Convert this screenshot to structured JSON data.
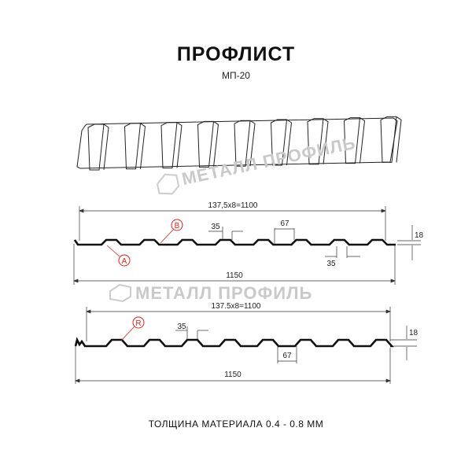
{
  "title": "ПРОФЛИСТ",
  "subtitle": "МП-20",
  "watermark": "МЕТАЛЛ ПРОФИЛЬ",
  "footer": "ТОЛЩИНА МАТЕРИАЛА 0.4 - 0.8 ММ",
  "colors": {
    "line": "#111111",
    "marker": "#e0201b",
    "watermark": "#c9c9c9"
  },
  "profile_a": {
    "overall_dim": "137,5x8=1100",
    "width_dim": "1150",
    "rib_top_dim": "35",
    "rib_bottom_dim": "35",
    "pitch_dim": "67",
    "height_dim": "18",
    "markers": [
      "A",
      "B"
    ]
  },
  "profile_r": {
    "overall_dim": "137.5x8=1100",
    "width_dim": "1150",
    "rib_top_dim": "35",
    "pitch_dim": "67",
    "height_dim": "18",
    "markers": [
      "R"
    ]
  }
}
